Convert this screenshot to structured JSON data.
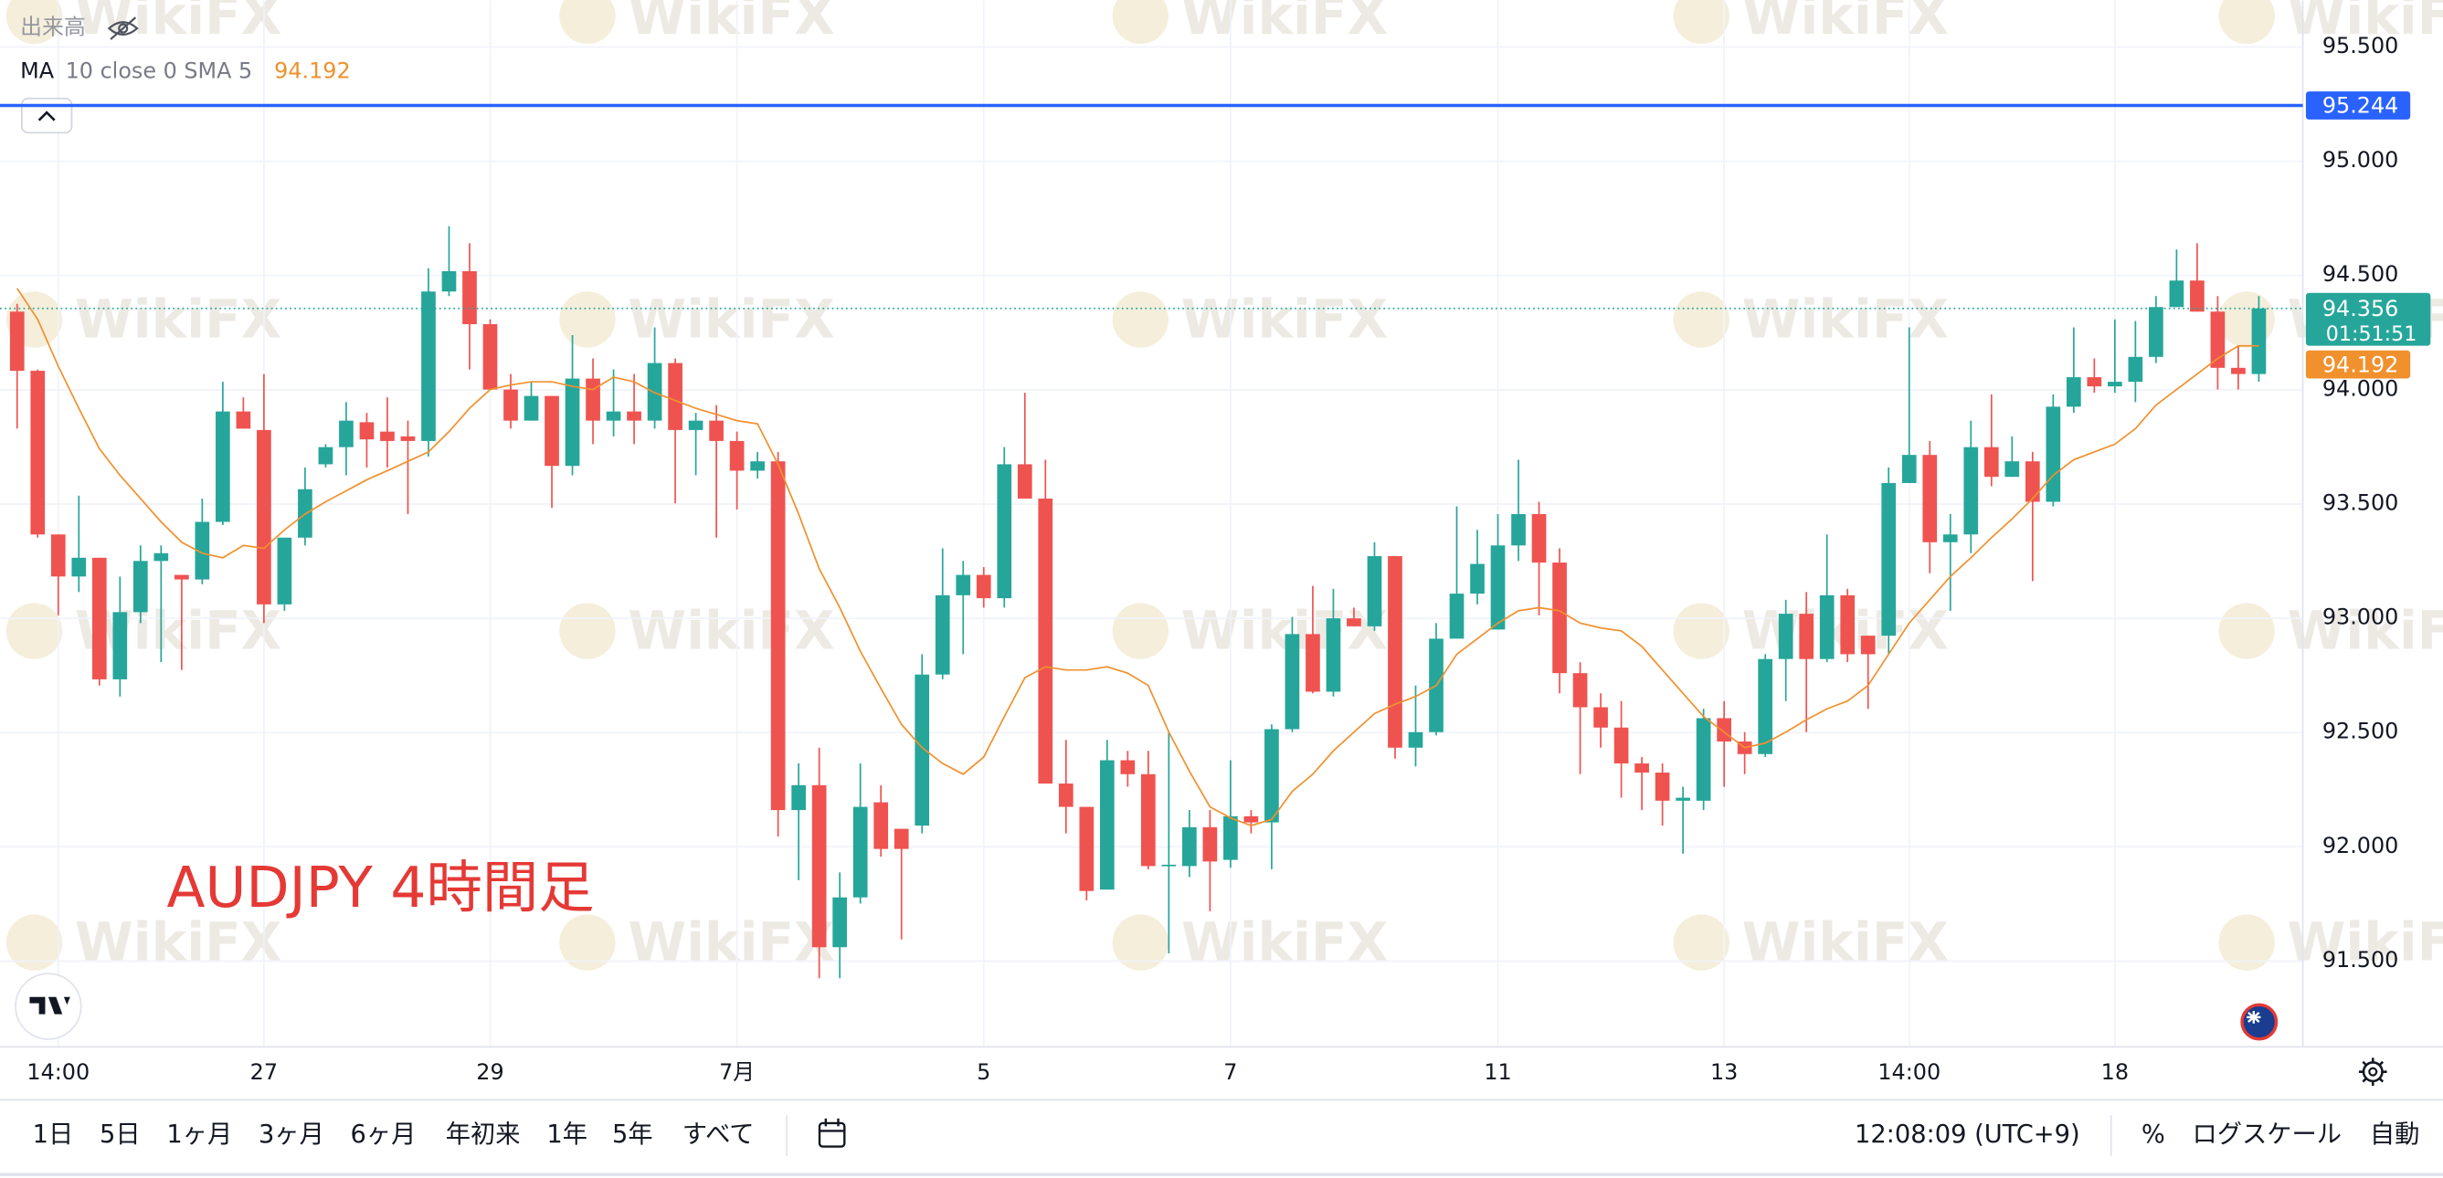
{
  "chart_data": {
    "type": "candlestick",
    "annotation": "AUDJPY 4時間足",
    "volume_label": "出来高",
    "countdown": "01:51:51",
    "up_color": "#26a69a",
    "down_color": "#ef5350",
    "grid": true,
    "ylim": [
      91.125,
      95.704
    ],
    "yticks": [
      {
        "value": 91.5,
        "label": "91.500"
      },
      {
        "value": 92,
        "label": "92.000"
      },
      {
        "value": 92.5,
        "label": "92.500"
      },
      {
        "value": 93,
        "label": "93.000"
      },
      {
        "value": 93.5,
        "label": "93.500"
      },
      {
        "value": 94,
        "label": "94.000"
      },
      {
        "value": 94.5,
        "label": "94.500"
      },
      {
        "value": 95,
        "label": "95.000"
      },
      {
        "value": 95.5,
        "label": "95.500"
      }
    ],
    "price_line": {
      "value": 95.244,
      "color": "#2962ff"
    },
    "categories": [
      null,
      null,
      "14:00",
      null,
      null,
      null,
      null,
      null,
      null,
      null,
      null,
      null,
      "27",
      null,
      null,
      null,
      null,
      null,
      null,
      null,
      null,
      null,
      null,
      "29",
      null,
      null,
      null,
      null,
      null,
      null,
      null,
      null,
      null,
      null,
      null,
      "7月",
      null,
      null,
      null,
      null,
      null,
      null,
      null,
      null,
      null,
      null,
      null,
      "5",
      null,
      null,
      null,
      null,
      null,
      null,
      null,
      null,
      null,
      null,
      null,
      "7",
      null,
      null,
      null,
      null,
      null,
      null,
      null,
      null,
      null,
      null,
      null,
      null,
      "11",
      null,
      null,
      null,
      null,
      null,
      null,
      null,
      null,
      null,
      null,
      "13",
      null,
      null,
      null,
      null,
      null,
      null,
      null,
      null,
      "14:00",
      null,
      null,
      null,
      null,
      null,
      null,
      null,
      null,
      null,
      "18",
      null,
      null,
      null,
      null,
      null,
      null,
      null
    ],
    "open": [
      94.342,
      94.083,
      93.367,
      93.183,
      93.265,
      92.733,
      93.027,
      93.251,
      93.19,
      93.17,
      93.422,
      93.905,
      93.824,
      93.061,
      93.353,
      93.674,
      93.749,
      93.858,
      93.817,
      93.796,
      93.776,
      94.43,
      94.519,
      94.287,
      94.001,
      93.865,
      93.973,
      93.667,
      94.049,
      93.865,
      93.905,
      93.865,
      94.117,
      93.824,
      93.865,
      93.776,
      93.646,
      93.687,
      92.161,
      92.27,
      91.561,
      91.779,
      92.195,
      92.079,
      92.093,
      92.754,
      93.101,
      93.19,
      93.088,
      93.674,
      93.524,
      92.277,
      92.175,
      91.813,
      92.379,
      92.318,
      91.916,
      91.916,
      92.086,
      91.943,
      92.134,
      92.107,
      92.515,
      92.931,
      92.679,
      93.0,
      92.965,
      93.272,
      92.434,
      92.502,
      92.911,
      93.108,
      92.951,
      93.319,
      93.456,
      93.244,
      92.76,
      92.611,
      92.522,
      92.365,
      92.325,
      92.202,
      92.202,
      92.563,
      92.461,
      92.406,
      92.822,
      93.02,
      92.822,
      93.101,
      92.924,
      92.924,
      93.592,
      93.715,
      93.333,
      93.367,
      93.749,
      93.619,
      93.687,
      93.51,
      93.926,
      94.055,
      94.015,
      94.035,
      94.144,
      94.362,
      94.478,
      94.342,
      94.096,
      94.069
    ],
    "high": [
      94.376,
      94.089,
      93.367,
      93.537,
      93.265,
      93.183,
      93.319,
      93.319,
      93.19,
      93.524,
      94.035,
      93.967,
      94.069,
      93.353,
      93.66,
      93.762,
      93.946,
      93.899,
      93.967,
      93.865,
      94.532,
      94.716,
      94.641,
      94.308,
      94.069,
      94.035,
      93.973,
      94.239,
      94.137,
      94.089,
      94.069,
      94.273,
      94.137,
      93.899,
      93.933,
      93.817,
      93.728,
      93.728,
      92.365,
      92.434,
      91.888,
      92.365,
      92.27,
      92.079,
      92.843,
      93.306,
      93.251,
      93.224,
      93.749,
      93.987,
      93.694,
      92.468,
      92.175,
      92.468,
      92.42,
      92.42,
      92.502,
      92.161,
      92.161,
      92.379,
      92.161,
      92.536,
      93.006,
      93.142,
      93.129,
      93.047,
      93.333,
      93.272,
      92.706,
      92.979,
      93.49,
      93.387,
      93.456,
      93.694,
      93.51,
      93.306,
      92.808,
      92.672,
      92.638,
      92.393,
      92.365,
      92.263,
      92.604,
      92.638,
      92.502,
      92.843,
      93.081,
      93.115,
      93.367,
      93.129,
      92.924,
      93.66,
      94.273,
      93.776,
      93.456,
      93.865,
      93.98,
      93.796,
      93.728,
      93.98,
      94.273,
      94.137,
      94.308,
      94.301,
      94.41,
      94.614,
      94.641,
      94.41,
      94.192,
      94.41
    ],
    "low": [
      93.83,
      93.353,
      93.013,
      93.115,
      92.706,
      92.658,
      92.979,
      92.808,
      92.774,
      93.149,
      93.408,
      93.83,
      92.979,
      93.033,
      93.319,
      93.66,
      93.626,
      93.66,
      93.66,
      93.456,
      93.708,
      94.41,
      94.089,
      94.001,
      93.83,
      93.865,
      93.483,
      93.626,
      93.762,
      93.796,
      93.762,
      93.83,
      93.503,
      93.626,
      93.353,
      93.476,
      93.612,
      92.045,
      91.854,
      91.425,
      91.425,
      91.752,
      91.957,
      91.595,
      92.059,
      92.733,
      92.843,
      93.047,
      93.047,
      93.524,
      92.277,
      92.059,
      91.766,
      91.813,
      92.263,
      91.902,
      91.534,
      91.868,
      91.718,
      91.909,
      92.059,
      91.902,
      92.502,
      92.672,
      92.658,
      92.965,
      92.945,
      92.386,
      92.352,
      92.488,
      92.911,
      93.061,
      92.951,
      93.251,
      93.013,
      92.672,
      92.318,
      92.434,
      92.215,
      92.161,
      92.093,
      91.97,
      92.161,
      92.263,
      92.318,
      92.393,
      92.638,
      92.502,
      92.808,
      92.808,
      92.604,
      92.843,
      93.592,
      93.197,
      93.033,
      93.285,
      93.578,
      93.619,
      93.163,
      93.49,
      93.899,
      93.987,
      93.987,
      93.946,
      94.117,
      94.362,
      94.342,
      94.001,
      94.001,
      94.035
    ],
    "close": [
      94.083,
      93.367,
      93.183,
      93.265,
      92.733,
      93.027,
      93.251,
      93.285,
      93.17,
      93.422,
      93.905,
      93.83,
      93.061,
      93.353,
      93.565,
      93.749,
      93.865,
      93.783,
      93.776,
      93.776,
      94.43,
      94.519,
      94.287,
      94.001,
      93.865,
      93.973,
      93.667,
      94.049,
      93.865,
      93.905,
      93.865,
      94.117,
      93.824,
      93.865,
      93.776,
      93.646,
      93.687,
      92.161,
      92.27,
      91.561,
      91.779,
      92.175,
      91.991,
      91.991,
      92.754,
      93.101,
      93.19,
      93.088,
      93.674,
      93.524,
      92.277,
      92.175,
      91.807,
      92.379,
      92.318,
      91.916,
      91.922,
      92.086,
      91.936,
      92.134,
      92.107,
      92.515,
      92.931,
      92.679,
      93.0,
      92.965,
      93.272,
      92.434,
      92.502,
      92.911,
      93.108,
      93.238,
      93.319,
      93.456,
      93.244,
      92.76,
      92.611,
      92.522,
      92.365,
      92.325,
      92.202,
      92.215,
      92.563,
      92.461,
      92.406,
      92.822,
      93.02,
      92.822,
      93.101,
      92.843,
      92.843,
      93.592,
      93.715,
      93.333,
      93.367,
      93.749,
      93.619,
      93.687,
      93.51,
      93.926,
      94.055,
      94.015,
      94.035,
      94.144,
      94.362,
      94.478,
      94.342,
      94.096,
      94.069,
      94.356
    ],
    "ma": {
      "name": "MA",
      "params": "10 close 0 SMA 5",
      "color": "#f0912e",
      "values": [
        94.444,
        94.308,
        94.103,
        93.919,
        93.742,
        93.626,
        93.524,
        93.422,
        93.333,
        93.285,
        93.265,
        93.319,
        93.306,
        93.387,
        93.456,
        93.51,
        93.558,
        93.606,
        93.646,
        93.687,
        93.728,
        93.817,
        93.919,
        94.001,
        94.021,
        94.035,
        94.035,
        94.015,
        94.001,
        94.055,
        94.035,
        93.987,
        93.953,
        93.919,
        93.892,
        93.865,
        93.851,
        93.674,
        93.456,
        93.217,
        93.047,
        92.856,
        92.693,
        92.536,
        92.434,
        92.365,
        92.318,
        92.393,
        92.57,
        92.74,
        92.788,
        92.774,
        92.774,
        92.788,
        92.76,
        92.706,
        92.502,
        92.331,
        92.175,
        92.127,
        92.093,
        92.12,
        92.243,
        92.318,
        92.42,
        92.502,
        92.583,
        92.624,
        92.658,
        92.706,
        92.843,
        92.911,
        92.979,
        93.033,
        93.047,
        93.033,
        92.979,
        92.958,
        92.945,
        92.877,
        92.774,
        92.672,
        92.57,
        92.502,
        92.434,
        92.454,
        92.502,
        92.556,
        92.604,
        92.638,
        92.706,
        92.843,
        92.979,
        93.081,
        93.183,
        93.265,
        93.353,
        93.435,
        93.524,
        93.626,
        93.694,
        93.728,
        93.762,
        93.83,
        93.933,
        94.001,
        94.069,
        94.137,
        94.192,
        94.192
      ]
    }
  },
  "watermark": "WikiFX",
  "toolbar": {
    "ranges": [
      "1日",
      "5日",
      "1ヶ月",
      "3ヶ月",
      "6ヶ月",
      "年初来",
      "1年",
      "5年",
      "すべて"
    ],
    "time": "12:08:09 (UTC+9)",
    "percent": "%",
    "log_scale": "ログスケール",
    "auto": "自動"
  }
}
